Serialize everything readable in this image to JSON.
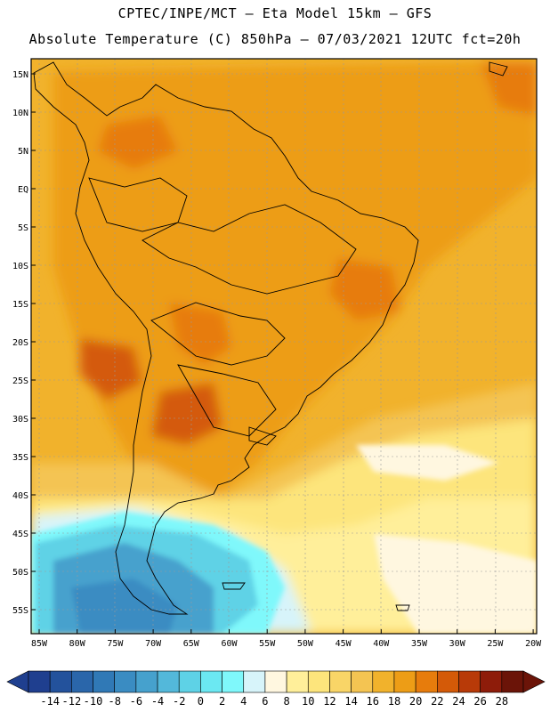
{
  "header": {
    "line1": "CPTEC/INPE/MCT –  Eta Model 15km – GFS",
    "line2": "Absolute Temperature (C) 850hPa – 07/03/2021 12UTC fct=20h"
  },
  "axes": {
    "lat_labels": [
      "15N",
      "10N",
      "5N",
      "EQ",
      "5S",
      "10S",
      "15S",
      "20S",
      "25S",
      "30S",
      "35S",
      "40S",
      "45S",
      "50S",
      "55S"
    ],
    "lon_labels": [
      "85W",
      "80W",
      "75W",
      "70W",
      "65W",
      "60W",
      "55W",
      "50W",
      "45W",
      "40W",
      "35W",
      "30W",
      "25W",
      "20W"
    ]
  },
  "colorbar": {
    "ticks": [
      "-14",
      "-12",
      "-10",
      "-8",
      "-6",
      "-4",
      "-2",
      "0",
      "2",
      "4",
      "6",
      "8",
      "10",
      "12",
      "14",
      "16",
      "18",
      "20",
      "22",
      "24",
      "26",
      "28"
    ],
    "colors": [
      "#1f3f8f",
      "#23529c",
      "#2a66aa",
      "#3079b6",
      "#3a8cc2",
      "#46a1cd",
      "#53b8da",
      "#5ed2e6",
      "#6be8f2",
      "#7ff8fb",
      "#d7f4fa",
      "#fff7e0",
      "#ffef9a",
      "#fde57c",
      "#f9d567",
      "#f4c452",
      "#f1b22c",
      "#ed9d16",
      "#e77c0c",
      "#d45a08",
      "#b83a08",
      "#8e1c0a",
      "#6b1408"
    ]
  },
  "chart_data": {
    "type": "heatmap",
    "title": "Absolute Temperature (C) 850hPa",
    "units": "C",
    "lat_range": [
      -58,
      17
    ],
    "lon_range": [
      -86,
      -20
    ],
    "scale_min": -14,
    "scale_max": 28
  }
}
